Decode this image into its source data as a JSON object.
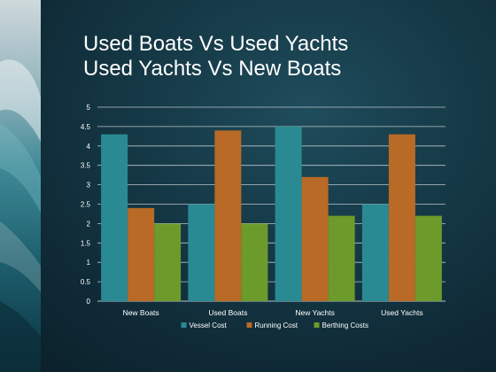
{
  "slide": {
    "title_line1": "Used Boats Vs Used Yachts",
    "title_line2": "Used Yachts Vs New Boats"
  },
  "colors": {
    "vessel": "#2a8a93",
    "running": "#b86a26",
    "berthing": "#6c9a2b",
    "text": "#ffffff",
    "grid": "#d8dde0"
  },
  "chart_data": {
    "type": "bar",
    "categories": [
      "New Boats",
      "Used Boats",
      "New Yachts",
      "Used Yachts"
    ],
    "series": [
      {
        "name": "Vessel Cost",
        "values": [
          4.3,
          2.5,
          4.5,
          2.5
        ]
      },
      {
        "name": "Running Cost",
        "values": [
          2.4,
          4.4,
          3.2,
          4.3
        ]
      },
      {
        "name": "Berthing Costs",
        "values": [
          2.0,
          2.0,
          2.2,
          2.2
        ]
      }
    ],
    "ylim": [
      0,
      5
    ],
    "yticks": [
      "0",
      "0.5",
      "1",
      "1.5",
      "2",
      "2.5",
      "3",
      "3.5",
      "4",
      "4.5",
      "5"
    ],
    "grid": true,
    "legend": "bottom"
  }
}
